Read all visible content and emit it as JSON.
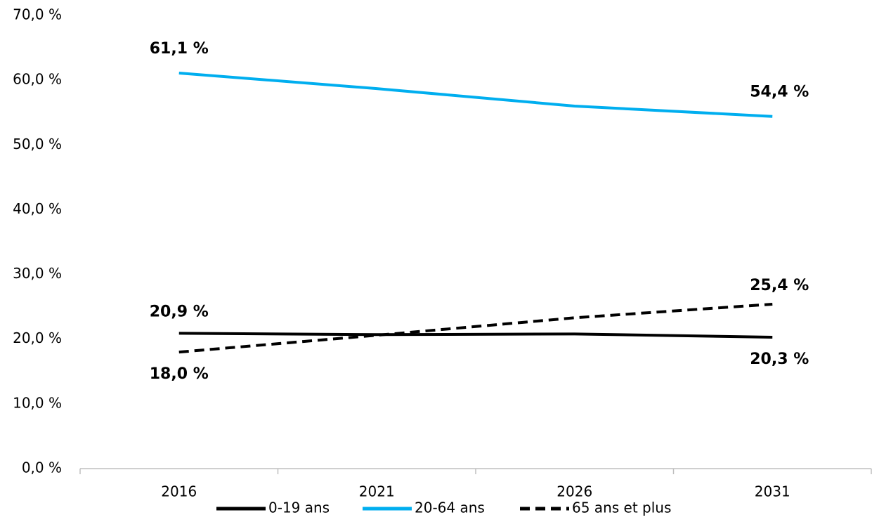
{
  "chart_data": {
    "type": "line",
    "categories": [
      "2016",
      "2021",
      "2026",
      "2031"
    ],
    "series": [
      {
        "name": "0-19 ans",
        "color": "#000000",
        "line_style": "solid",
        "values": [
          20.9,
          20.7,
          20.8,
          20.3
        ],
        "value_labels": [
          "20,9 %",
          null,
          null,
          "20,3 %"
        ]
      },
      {
        "name": "20-64 ans",
        "color": "#00aeef",
        "line_style": "solid",
        "values": [
          61.1,
          58.7,
          56.0,
          54.4
        ],
        "value_labels": [
          "61,1 %",
          null,
          null,
          "54,4 %"
        ]
      },
      {
        "name": "65 ans et plus",
        "color": "#000000",
        "line_style": "dashed",
        "values": [
          18.0,
          20.6,
          23.3,
          25.4
        ],
        "value_labels": [
          "18,0 %",
          null,
          null,
          "25,4 %"
        ]
      }
    ],
    "ylim": [
      0,
      70
    ],
    "yticks": [
      {
        "value": 0,
        "label": "0,0 %"
      },
      {
        "value": 10,
        "label": "10,0 %"
      },
      {
        "value": 20,
        "label": "20,0 %"
      },
      {
        "value": 30,
        "label": "30,0 %"
      },
      {
        "value": 40,
        "label": "40,0 %"
      },
      {
        "value": 50,
        "label": "50,0 %"
      },
      {
        "value": 60,
        "label": "60,0 %"
      },
      {
        "value": 70,
        "label": "70,0 %"
      }
    ],
    "grid": false,
    "legend": "bottom"
  }
}
